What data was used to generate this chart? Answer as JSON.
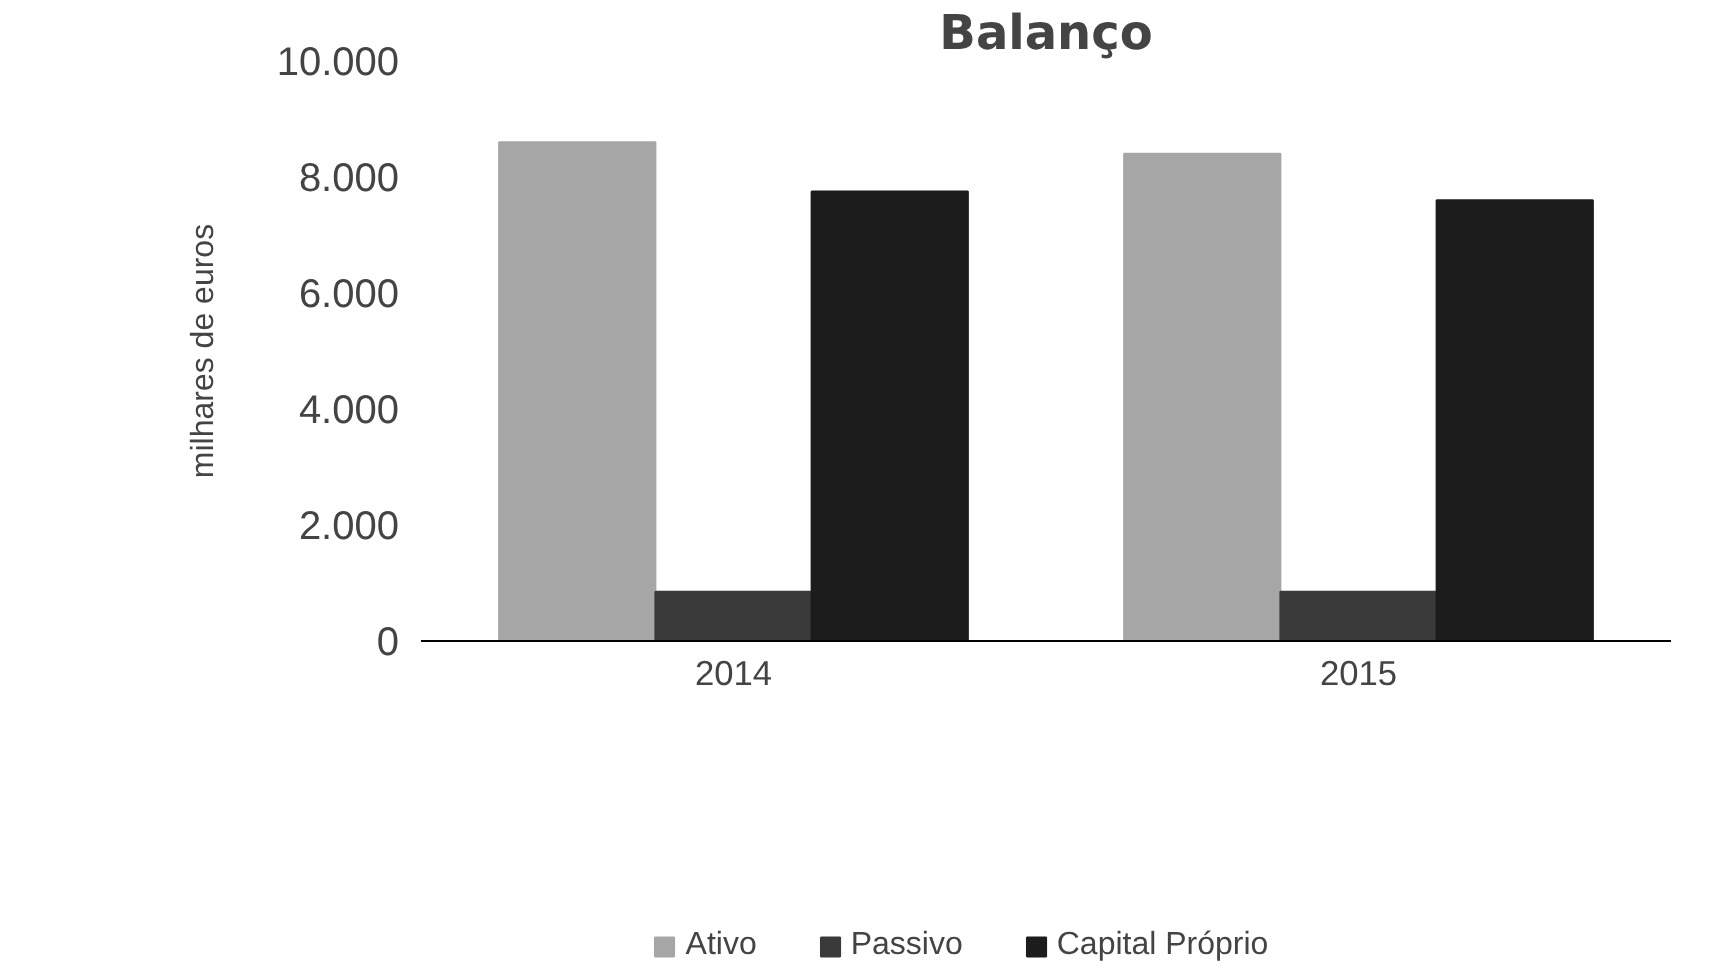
{
  "chart_data": {
    "type": "bar",
    "title": "Balanço",
    "ylabel": "milhares de euros",
    "categories": [
      "2014",
      "2015"
    ],
    "series": [
      {
        "name": "Ativo",
        "color": "#a6a6a6",
        "values": [
          8600,
          8400
        ]
      },
      {
        "name": "Passivo",
        "color": "#3a3a3a",
        "values": [
          850,
          850
        ]
      },
      {
        "name": "Capital Próprio",
        "color": "#1c1c1c",
        "values": [
          7750,
          7600
        ]
      }
    ],
    "ylim": [
      0,
      10000
    ],
    "yticks": [
      {
        "value": 0,
        "label": "0"
      },
      {
        "value": 2000,
        "label": "2.000"
      },
      {
        "value": 4000,
        "label": "4.000"
      },
      {
        "value": 6000,
        "label": "6.000"
      },
      {
        "value": 8000,
        "label": "8.000"
      },
      {
        "value": 10000,
        "label": "10.000"
      }
    ],
    "grid": false,
    "legend": "bottom"
  }
}
